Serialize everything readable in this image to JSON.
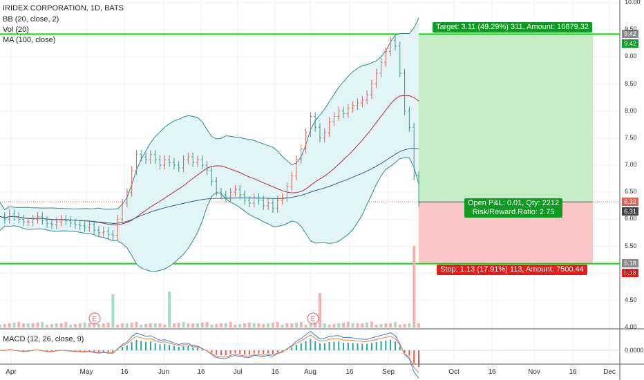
{
  "legend": {
    "title": "IRIDEX CORPORATION, 1D, BATS",
    "bb": "BB (20, close, 2)",
    "vol": "Vol (20)",
    "ma": "MA (100, close)",
    "macd": "MACD (12, 26, close, 9)"
  },
  "badges": {
    "target": "Target: 3.11 (49.29%) 311, Amount: 16879.32",
    "pnl_line1": "Open P&L: 0.01, Qty: 2212",
    "pnl_line2": "Risk/Reward Ratio: 2.75",
    "stop": "Stop: 1.13 (17.91%) 113, Amount: 7500.44"
  },
  "price_tags": {
    "target_top": "9.42",
    "target_bottom": "9.42",
    "entry": "6.32",
    "last": "6.31",
    "stop_top": "5.18",
    "stop_bottom": "5.18"
  },
  "macd_tick": "0.0000",
  "earnings_markers": [
    "E",
    "E"
  ],
  "colors": {
    "up": "#e0605a",
    "down": "#3a9a8c",
    "bb": "#2e8b8b",
    "ma": "#2b5f86",
    "target_fill": "#c8ecc8",
    "stop_fill": "#f9c7c7",
    "green_line": "#00e000",
    "macd": "#3f7fc9",
    "signal": "#f07b3f"
  },
  "chart_data": {
    "type": "candlestick",
    "y_ticks": [
      "10.00",
      "9.50",
      "9.00",
      "8.50",
      "8.00",
      "7.50",
      "7.00",
      "6.50",
      "6.00",
      "5.50",
      "5.00",
      "4.50",
      "4.00"
    ],
    "ylim": [
      4.0,
      10.0
    ],
    "x_ticks": [
      "Apr",
      "May",
      "16",
      "Jun",
      "16",
      "Jul",
      "16",
      "Aug",
      "16",
      "Sep",
      "Oct",
      "16",
      "Nov",
      "16",
      "Dec"
    ],
    "position": {
      "entry": 6.32,
      "target": 9.42,
      "stop": 5.18,
      "last": 6.31
    },
    "close_series": [
      6.05,
      6.0,
      6.1,
      6.05,
      6.0,
      5.95,
      5.95,
      6.0,
      6.05,
      5.98,
      5.92,
      5.9,
      5.95,
      6.0,
      5.97,
      5.93,
      5.9,
      5.88,
      5.85,
      5.9,
      5.8,
      5.75,
      5.78,
      5.72,
      5.7,
      6.0,
      6.3,
      6.5,
      6.9,
      7.2,
      7.15,
      7.1,
      7.2,
      7.1,
      7.0,
      7.1,
      7.05,
      7.0,
      6.95,
      7.1,
      7.15,
      7.05,
      7.1,
      7.0,
      6.9,
      6.7,
      6.5,
      6.45,
      6.4,
      6.5,
      6.55,
      6.45,
      6.35,
      6.3,
      6.4,
      6.35,
      6.25,
      6.3,
      6.2,
      6.35,
      6.4,
      6.6,
      6.8,
      7.1,
      7.3,
      7.6,
      7.9,
      7.7,
      7.5,
      7.6,
      7.8,
      7.9,
      8.0,
      7.95,
      8.05,
      8.1,
      8.15,
      8.2,
      8.3,
      8.5,
      8.7,
      8.9,
      9.1,
      9.3,
      9.2,
      8.7,
      8.0,
      7.7,
      6.8,
      6.31
    ]
  }
}
